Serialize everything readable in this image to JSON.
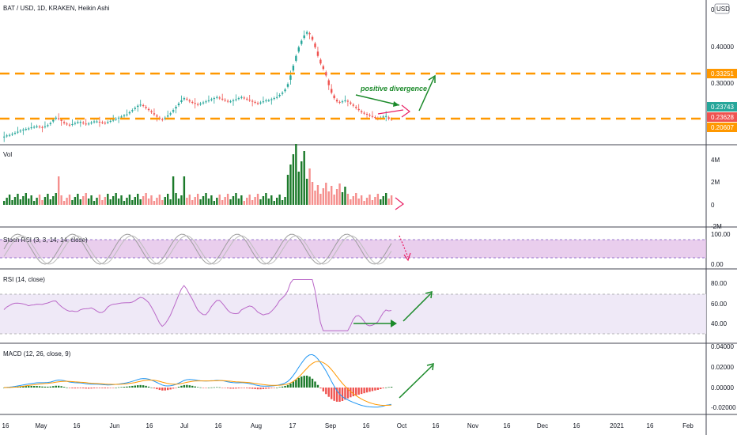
{
  "title": "BAT / USD, 1D, KRAKEN, Heikin Ashi",
  "currency_badge": "USD",
  "colors": {
    "up": "#26a69a",
    "up_strong": "#1b7a2a",
    "down": "#ef5350",
    "support_resistance": "#ff9800",
    "annotation": "#1b8a2a",
    "divergence_arrow": "#e91e63",
    "stoch_band": "#e1bee7",
    "rsi_band": "#ede7f6",
    "rsi_line": "#ba68c8",
    "macd_line": "#2196f3",
    "signal_line": "#ff9800"
  },
  "panes": {
    "price": {
      "axis_ticks": [
        "0.4",
        "0.40000",
        "0.30000"
      ],
      "tags": [
        {
          "text": "0.33251",
          "color": "#ff9800"
        },
        {
          "text": "0.23743",
          "color": "#26a69a"
        },
        {
          "text": "0.23628",
          "color": "#ef5350"
        },
        {
          "text": "0.20607",
          "color": "#ff9800"
        }
      ],
      "annotation": "positive divergence"
    },
    "volume": {
      "title": "Vol",
      "axis_ticks": [
        "4M",
        "2M",
        "0",
        "-2M"
      ]
    },
    "stoch": {
      "title": "Stoch RSI (3, 3, 14, 14, close)",
      "axis_ticks": [
        "100.00",
        "0.00"
      ]
    },
    "rsi": {
      "title": "RSI (14, close)",
      "axis_ticks": [
        "80.00",
        "60.00",
        "40.00"
      ]
    },
    "macd": {
      "title": "MACD (12, 26, close, 9)",
      "axis_ticks": [
        "0.04000",
        "0.02000",
        "0.00000",
        "-0.02000"
      ]
    }
  },
  "x_axis_labels": [
    "16",
    "May",
    "16",
    "Jun",
    "16",
    "Jul",
    "16",
    "Aug",
    "17",
    "Sep",
    "16",
    "Oct",
    "16",
    "Nov",
    "16",
    "Dec",
    "16",
    "2021",
    "16",
    "Feb"
  ],
  "chart_data": {
    "type": "candlestick",
    "title": "BAT / USD, 1D, KRAKEN, Heikin Ashi",
    "price_ylim": [
      0.19,
      0.45
    ],
    "horizontal_levels": [
      0.33251,
      0.20607
    ],
    "last_price": 0.23743,
    "closes": [
      0.205,
      0.207,
      0.208,
      0.21,
      0.212,
      0.214,
      0.216,
      0.218,
      0.219,
      0.22,
      0.222,
      0.223,
      0.224,
      0.223,
      0.222,
      0.224,
      0.226,
      0.23,
      0.236,
      0.24,
      0.238,
      0.234,
      0.23,
      0.228,
      0.226,
      0.228,
      0.23,
      0.232,
      0.232,
      0.23,
      0.228,
      0.229,
      0.231,
      0.233,
      0.233,
      0.232,
      0.231,
      0.23,
      0.232,
      0.234,
      0.236,
      0.238,
      0.24,
      0.242,
      0.244,
      0.246,
      0.25,
      0.254,
      0.258,
      0.262,
      0.264,
      0.262,
      0.258,
      0.254,
      0.25,
      0.246,
      0.242,
      0.238,
      0.236,
      0.24,
      0.244,
      0.248,
      0.254,
      0.26,
      0.266,
      0.272,
      0.276,
      0.274,
      0.27,
      0.268,
      0.266,
      0.264,
      0.266,
      0.268,
      0.27,
      0.272,
      0.274,
      0.276,
      0.278,
      0.276,
      0.274,
      0.272,
      0.27,
      0.27,
      0.272,
      0.274,
      0.276,
      0.278,
      0.276,
      0.274,
      0.272,
      0.27,
      0.268,
      0.266,
      0.268,
      0.27,
      0.272,
      0.272,
      0.274,
      0.276,
      0.278,
      0.282,
      0.286,
      0.292,
      0.302,
      0.318,
      0.336,
      0.354,
      0.37,
      0.382,
      0.392,
      0.398,
      0.394,
      0.384,
      0.37,
      0.354,
      0.34,
      0.33,
      0.318,
      0.3,
      0.286,
      0.276,
      0.27,
      0.268,
      0.27,
      0.272,
      0.27,
      0.266,
      0.262,
      0.258,
      0.254,
      0.25,
      0.248,
      0.246,
      0.244,
      0.242,
      0.24,
      0.238,
      0.24,
      0.242,
      0.243,
      0.238,
      0.237
    ],
    "volume_ticks": [
      "4M",
      "2M",
      "0",
      "-2M"
    ],
    "stoch_rsi_levels": [
      80,
      20
    ],
    "rsi_levels": [
      70,
      30
    ],
    "macd_ticks": [
      0.04,
      0.02,
      0.0,
      -0.02
    ]
  }
}
